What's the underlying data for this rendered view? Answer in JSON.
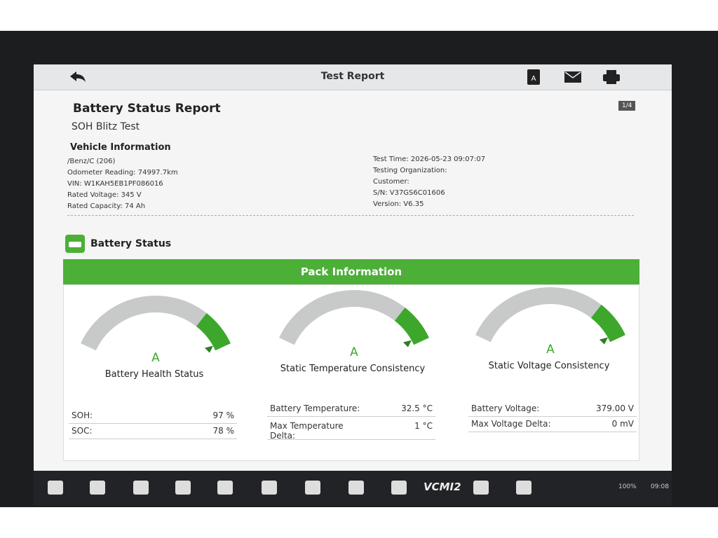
{
  "header": {
    "title": "Test Report"
  },
  "report": {
    "title": "Battery Status Report",
    "subtitle": "SOH Blitz Test",
    "page": "1/4"
  },
  "vehicle_info": {
    "heading": "Vehicle Information",
    "left": [
      "/Benz/C (206)",
      "Odometer Reading: 74997.7km",
      "VIN: W1KAH5EB1PF086016",
      "Rated Voltage: 345 V",
      "Rated Capacity: 74 Ah"
    ],
    "right": [
      "Test Time: 2026-05-23 09:07:07",
      "Testing Organization:",
      "Customer:",
      "S/N: V37GS6C01606",
      "Version: V6.35"
    ]
  },
  "section": {
    "title": "Battery Status"
  },
  "pack": {
    "title": "Pack Information",
    "gauges": [
      {
        "grade": "A",
        "label": "Battery Health Status",
        "rows": [
          {
            "label": "SOH:",
            "value": "97 %"
          },
          {
            "label": "SOC:",
            "value": "78 %"
          }
        ]
      },
      {
        "grade": "A",
        "label": "Static Temperature Consistency",
        "rows": [
          {
            "label": "Battery Temperature:",
            "value": "32.5 °C"
          },
          {
            "label": "Max Temperature Delta:",
            "value": "1 °C"
          }
        ]
      },
      {
        "grade": "A",
        "label": "Static Voltage Consistency",
        "rows": [
          {
            "label": "Battery Voltage:",
            "value": "379.00 V"
          },
          {
            "label": "Max Voltage Delta:",
            "value": "0 mV"
          }
        ]
      }
    ]
  },
  "navbar": {
    "vci_label": "VCMI2",
    "battery": "100%",
    "time": "09:08"
  }
}
